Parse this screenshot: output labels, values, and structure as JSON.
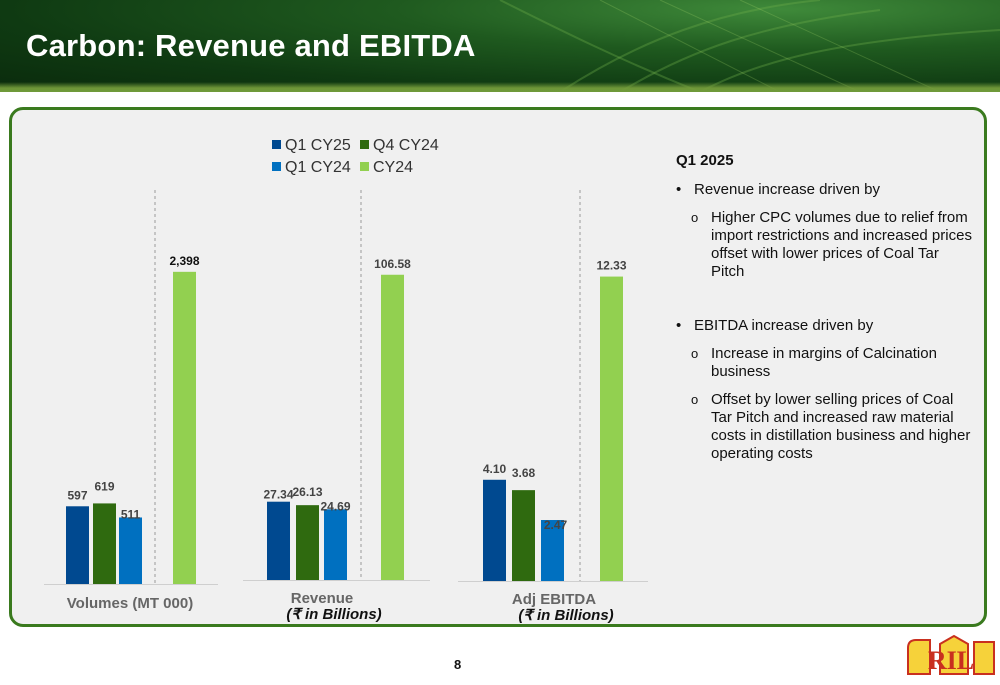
{
  "slide": {
    "title": "Carbon: Revenue and EBITDA",
    "page_number": "8",
    "logo_text": "RIL"
  },
  "legend": [
    {
      "name": "Q1 CY25",
      "color": "#004990"
    },
    {
      "name": "Q4 CY24",
      "color": "#2f6a0f"
    },
    {
      "name": "Q1 CY24",
      "color": "#0070c0"
    },
    {
      "name": "CY24",
      "color": "#92d050"
    }
  ],
  "chart_data": [
    {
      "type": "bar",
      "title": "",
      "xlabel": "Volumes (MT 000)",
      "xlabel_sub": "",
      "categories": [
        "Q1 CY25",
        "Q4 CY24",
        "Q1 CY24",
        "CY24"
      ],
      "values": [
        597,
        619,
        511,
        2398
      ],
      "data_labels": [
        "597",
        "619",
        "511",
        "2,398"
      ],
      "colors": [
        "#004990",
        "#2f6a0f",
        "#0070c0",
        "#92d050"
      ],
      "ylim": [
        0,
        2750
      ]
    },
    {
      "type": "bar",
      "title": "",
      "xlabel": "Revenue",
      "xlabel_sub": "(₹ in Billions)",
      "categories": [
        "Q1 CY25",
        "Q4 CY24",
        "Q1 CY24",
        "CY24"
      ],
      "values": [
        27.34,
        26.13,
        24.69,
        106.58
      ],
      "data_labels": [
        "27.34",
        "26.13",
        "24.69",
        "106.58"
      ],
      "colors": [
        "#004990",
        "#2f6a0f",
        "#0070c0",
        "#92d050"
      ],
      "ylim": [
        0,
        125
      ]
    },
    {
      "type": "bar",
      "title": "",
      "xlabel": "Adj EBITDA",
      "xlabel_sub": "(₹ in Billions)",
      "categories": [
        "Q1 CY25",
        "Q4 CY24",
        "Q1 CY24",
        "CY24"
      ],
      "values": [
        4.1,
        3.68,
        2.47,
        12.33
      ],
      "data_labels": [
        "4.10",
        "3.68",
        "2.47",
        "12.33"
      ],
      "colors": [
        "#004990",
        "#2f6a0f",
        "#0070c0",
        "#92d050"
      ],
      "ylim": [
        0,
        14.5
      ]
    }
  ],
  "notes": {
    "heading": "Q1 2025",
    "bullets": [
      {
        "text": "Revenue increase driven by",
        "subs": [
          "Higher CPC volumes due to relief from import restrictions and increased prices offset with lower prices of Coal Tar Pitch"
        ]
      },
      {
        "text": "EBITDA increase driven by",
        "subs": [
          "Increase in margins of Calcination business",
          "Offset by lower selling prices of Coal Tar Pitch and increased raw material costs in distillation business and higher operating costs"
        ]
      }
    ]
  }
}
